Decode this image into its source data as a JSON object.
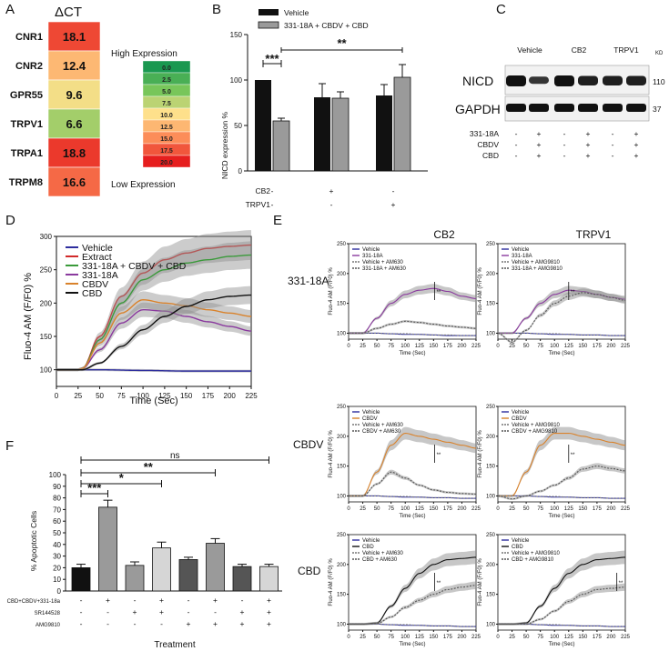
{
  "panel_letters": {
    "A": "A",
    "B": "B",
    "C": "C",
    "D": "D",
    "E": "E",
    "F": "F"
  },
  "colors": {
    "vehicle": "#2e2e9e",
    "extract": "#d12a2a",
    "combo": "#3a9a3a",
    "agonist": "#8a3a9e",
    "cbdv": "#d9822b",
    "cbd": "#111111",
    "band": "#9a9a9a"
  },
  "chart_data": [
    {
      "id": "A",
      "type": "heatmap",
      "title": "ΔCT",
      "genes": [
        "CNR1",
        "CNR2",
        "GPR55",
        "TRPV1",
        "TRPA1",
        "TRPM8"
      ],
      "values": [
        18.1,
        12.4,
        9.6,
        6.6,
        18.8,
        16.6
      ],
      "value_labels": [
        "18.1",
        "12.4",
        "9.6",
        "6.6",
        "18.8",
        "16.6"
      ],
      "scale_top_label": "High Expression",
      "scale_bottom_label": "Low Expression",
      "scale_values": [
        "0.0",
        "2.5",
        "5.0",
        "7.5",
        "10.0",
        "12.5",
        "15.0",
        "17.5",
        "20.0"
      ]
    },
    {
      "id": "B",
      "type": "bar",
      "ylabel": "NICD expression %",
      "ylim": [
        0,
        150
      ],
      "yticks": [
        "0",
        "50",
        "100",
        "150"
      ],
      "legend": [
        "Vehicle",
        "331-18A + CBDV + CBD"
      ],
      "groups": [
        {
          "vehicle": 100,
          "treated": 55,
          "vehicle_err": 0,
          "treated_err": 3
        },
        {
          "vehicle": 81,
          "treated": 80,
          "vehicle_err": 15,
          "treated_err": 7
        },
        {
          "vehicle": 83,
          "treated": 103,
          "vehicle_err": 12,
          "treated_err": 14
        }
      ],
      "row_labels": [
        "CB2",
        "TRPV1"
      ],
      "row_signs": [
        [
          "-",
          "+",
          "-"
        ],
        [
          "-",
          "-",
          "+"
        ]
      ],
      "sig1": "***",
      "sig2": "**"
    },
    {
      "id": "C",
      "type": "table",
      "group_labels": [
        "Vehicle",
        "CB2",
        "TRPV1"
      ],
      "kd_label": "KD",
      "bands": [
        {
          "name": "NICD",
          "kd": "110"
        },
        {
          "name": "GAPDH",
          "kd": "37"
        }
      ],
      "treat_labels": [
        "331-18A",
        "CBDV",
        "CBD"
      ],
      "treat_signs": [
        [
          "-",
          "+",
          "-",
          "+",
          "-",
          "+"
        ],
        [
          "-",
          "+",
          "-",
          "+",
          "-",
          "+"
        ],
        [
          "-",
          "+",
          "-",
          "+",
          "-",
          "+"
        ]
      ]
    },
    {
      "id": "D",
      "type": "line",
      "xlabel": "Time (Sec)",
      "ylabel": "Fluo-4 AM (F/F0) %",
      "xlim": [
        0,
        225
      ],
      "ylim": [
        75,
        300
      ],
      "xticks": [
        "0",
        "25",
        "50",
        "75",
        "100",
        "125",
        "150",
        "175",
        "200",
        "225"
      ],
      "yticks": [
        "100",
        "150",
        "200",
        "250",
        "300"
      ],
      "series": [
        {
          "name": "Vehicle",
          "color": "#2e2e9e",
          "x": [
            0,
            25,
            50,
            100,
            150,
            225
          ],
          "y": [
            100,
            100,
            100,
            99,
            98,
            98
          ]
        },
        {
          "name": "Extract",
          "color": "#d12a2a",
          "x": [
            0,
            25,
            30,
            50,
            75,
            100,
            125,
            150,
            175,
            200,
            225
          ],
          "y": [
            100,
            100,
            102,
            150,
            210,
            245,
            265,
            275,
            282,
            285,
            287
          ]
        },
        {
          "name": "331-18A + CBDV + CBD",
          "color": "#3a9a3a",
          "x": [
            0,
            25,
            30,
            50,
            75,
            100,
            125,
            150,
            175,
            200,
            225
          ],
          "y": [
            100,
            100,
            102,
            145,
            200,
            235,
            250,
            260,
            265,
            270,
            272
          ]
        },
        {
          "name": "331-18A",
          "color": "#8a3a9e",
          "x": [
            0,
            25,
            30,
            50,
            75,
            100,
            125,
            150,
            175,
            200,
            225
          ],
          "y": [
            100,
            100,
            102,
            130,
            170,
            190,
            188,
            180,
            172,
            165,
            158
          ]
        },
        {
          "name": "CBDV",
          "color": "#d9822b",
          "x": [
            0,
            25,
            30,
            50,
            75,
            100,
            125,
            150,
            175,
            200,
            225
          ],
          "y": [
            100,
            100,
            102,
            140,
            185,
            205,
            200,
            196,
            190,
            185,
            180
          ]
        },
        {
          "name": "CBD",
          "color": "#111111",
          "x": [
            0,
            25,
            30,
            50,
            75,
            100,
            125,
            150,
            175,
            200,
            225
          ],
          "y": [
            100,
            100,
            100,
            110,
            135,
            160,
            180,
            195,
            205,
            210,
            212
          ]
        }
      ]
    },
    {
      "id": "E",
      "type": "line",
      "col_titles": [
        "CB2",
        "TRPV1"
      ],
      "row_titles": [
        "331-18A",
        "CBDV",
        "CBD"
      ],
      "ylabel": "Fluo-4 AM (F/F0) %",
      "xlabel": "Time (Sec)",
      "xlim": [
        0,
        225
      ],
      "ylim": [
        90,
        250
      ],
      "xticks": [
        "0",
        "25",
        "50",
        "75",
        "100",
        "125",
        "150",
        "175",
        "200",
        "225"
      ],
      "yticks": [
        "100",
        "150",
        "200",
        "250"
      ],
      "star": "**",
      "subplots": [
        {
          "legend": [
            "Vehicle",
            "331-18A",
            "Vehicle + AM630",
            "331-18A + AM630"
          ],
          "series": [
            {
              "color": "#2e2e9e",
              "y": [
                100,
                100,
                100,
                99,
                98,
                98,
                97,
                96,
                96,
                96
              ]
            },
            {
              "color": "#8a3a9e",
              "y": [
                100,
                100,
                125,
                150,
                165,
                172,
                175,
                170,
                162,
                158
              ]
            },
            {
              "color": "#777777",
              "y": [
                100,
                100,
                100,
                99,
                99,
                98,
                97,
                97,
                96,
                96
              ]
            },
            {
              "color": "#555555",
              "y": [
                100,
                100,
                108,
                115,
                120,
                118,
                115,
                112,
                110,
                108
              ]
            }
          ]
        },
        {
          "legend": [
            "Vehicle",
            "331-18A",
            "Vehicle + AMG9810",
            "331-18A + AMG9810"
          ],
          "series": [
            {
              "color": "#2e2e9e",
              "y": [
                100,
                100,
                100,
                99,
                98,
                98,
                97,
                97,
                96,
                96
              ]
            },
            {
              "color": "#8a3a9e",
              "y": [
                100,
                100,
                125,
                150,
                165,
                172,
                170,
                165,
                160,
                157
              ]
            },
            {
              "color": "#777777",
              "y": [
                100,
                100,
                100,
                99,
                99,
                98,
                97,
                97,
                96,
                96
              ]
            },
            {
              "color": "#555555",
              "y": [
                100,
                85,
                105,
                130,
                150,
                162,
                168,
                165,
                160,
                155
              ]
            }
          ]
        },
        {
          "legend": [
            "Vehicle",
            "CBDV",
            "Vehicle + AM630",
            "CBDV + AM630"
          ],
          "series": [
            {
              "color": "#2e2e9e",
              "y": [
                100,
                100,
                100,
                99,
                98,
                98,
                97,
                97,
                96,
                96
              ]
            },
            {
              "color": "#d9822b",
              "y": [
                100,
                100,
                140,
                185,
                205,
                200,
                195,
                190,
                185,
                180
              ]
            },
            {
              "color": "#777777",
              "y": [
                100,
                100,
                100,
                99,
                99,
                98,
                97,
                97,
                96,
                96
              ]
            },
            {
              "color": "#555555",
              "y": [
                100,
                100,
                120,
                140,
                130,
                118,
                110,
                106,
                104,
                103
              ]
            }
          ]
        },
        {
          "legend": [
            "Vehicle",
            "CBDV",
            "Vehicle + AMG9810",
            "CBDV + AMG9810"
          ],
          "series": [
            {
              "color": "#2e2e9e",
              "y": [
                100,
                100,
                100,
                99,
                98,
                98,
                97,
                97,
                96,
                96
              ]
            },
            {
              "color": "#d9822b",
              "y": [
                100,
                100,
                140,
                185,
                205,
                205,
                200,
                195,
                190,
                185
              ]
            },
            {
              "color": "#777777",
              "y": [
                100,
                100,
                100,
                99,
                99,
                98,
                97,
                97,
                96,
                96
              ]
            },
            {
              "color": "#555555",
              "y": [
                100,
                95,
                100,
                108,
                118,
                130,
                145,
                150,
                146,
                142
              ]
            }
          ]
        },
        {
          "legend": [
            "Vehicle",
            "CBD",
            "Vehicle + AM630",
            "CBD + AM630"
          ],
          "series": [
            {
              "color": "#2e2e9e",
              "y": [
                100,
                100,
                100,
                99,
                98,
                98,
                97,
                97,
                96,
                96
              ]
            },
            {
              "color": "#111111",
              "y": [
                100,
                100,
                102,
                130,
                160,
                185,
                200,
                208,
                210,
                212
              ]
            },
            {
              "color": "#777777",
              "y": [
                100,
                100,
                100,
                99,
                99,
                98,
                97,
                97,
                96,
                96
              ]
            },
            {
              "color": "#555555",
              "y": [
                100,
                100,
                101,
                112,
                128,
                140,
                150,
                158,
                162,
                165
              ]
            }
          ]
        },
        {
          "legend": [
            "Vehicle",
            "CBD",
            "Vehicle + AMG9810",
            "CBD + AMG9810"
          ],
          "series": [
            {
              "color": "#2e2e9e",
              "y": [
                100,
                100,
                100,
                99,
                98,
                98,
                97,
                97,
                96,
                96
              ]
            },
            {
              "color": "#111111",
              "y": [
                100,
                100,
                102,
                130,
                160,
                185,
                200,
                208,
                210,
                212
              ]
            },
            {
              "color": "#777777",
              "y": [
                100,
                100,
                100,
                99,
                99,
                98,
                97,
                97,
                96,
                96
              ]
            },
            {
              "color": "#555555",
              "y": [
                100,
                100,
                100,
                108,
                122,
                138,
                150,
                158,
                160,
                162
              ]
            }
          ]
        }
      ]
    },
    {
      "id": "F",
      "type": "bar",
      "ylabel": "% Apoptotic Cells",
      "xlabel": "Treatment",
      "ylim": [
        0,
        100
      ],
      "yticks": [
        "0",
        "10",
        "20",
        "30",
        "40",
        "50",
        "60",
        "70",
        "80",
        "90",
        "100"
      ],
      "values": [
        20,
        72,
        22,
        37,
        27,
        41,
        21,
        21
      ],
      "errors": [
        3,
        6,
        3,
        5,
        2,
        4,
        2,
        2
      ],
      "bar_colors": [
        "#111111",
        "#9a9a9a",
        "#9a9a9a",
        "#d6d6d6",
        "#555555",
        "#9a9a9a",
        "#555555",
        "#d6d6d6"
      ],
      "row_labels": [
        "CBD+CBDV+331-18a",
        "SR144528",
        "AMG9810"
      ],
      "row_signs": [
        [
          "-",
          "+",
          "-",
          "+",
          "-",
          "+",
          "-",
          "+"
        ],
        [
          "-",
          "-",
          "+",
          "+",
          "-",
          "-",
          "+",
          "+"
        ],
        [
          "-",
          "-",
          "-",
          "-",
          "+",
          "+",
          "+",
          "+"
        ]
      ],
      "sig_labels": [
        "***",
        "*",
        "**",
        "ns"
      ]
    }
  ]
}
